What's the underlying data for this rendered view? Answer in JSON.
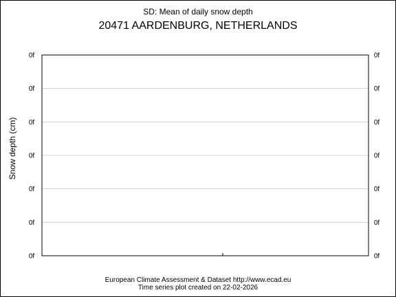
{
  "chart_data": {
    "type": "line",
    "title": "SD: Mean of daily snow depth",
    "subtitle": "20471 AARDENBURG, NETHERLANDS",
    "ylabel": "Snow depth (cm)",
    "xlabel": "",
    "y_tick_labels": [
      "0f",
      "0f",
      "0f",
      "0f",
      "0f",
      "0f",
      "0f"
    ],
    "x": [],
    "series": [],
    "grid": true
  },
  "footer": {
    "line1": "European Climate Assessment & Dataset  http://www.ecad.eu",
    "line2": "Time series plot created on 22-02-2026"
  },
  "colors": {
    "grid": "#d3d3d3",
    "axis": "#000000",
    "background": "#ffffff"
  }
}
